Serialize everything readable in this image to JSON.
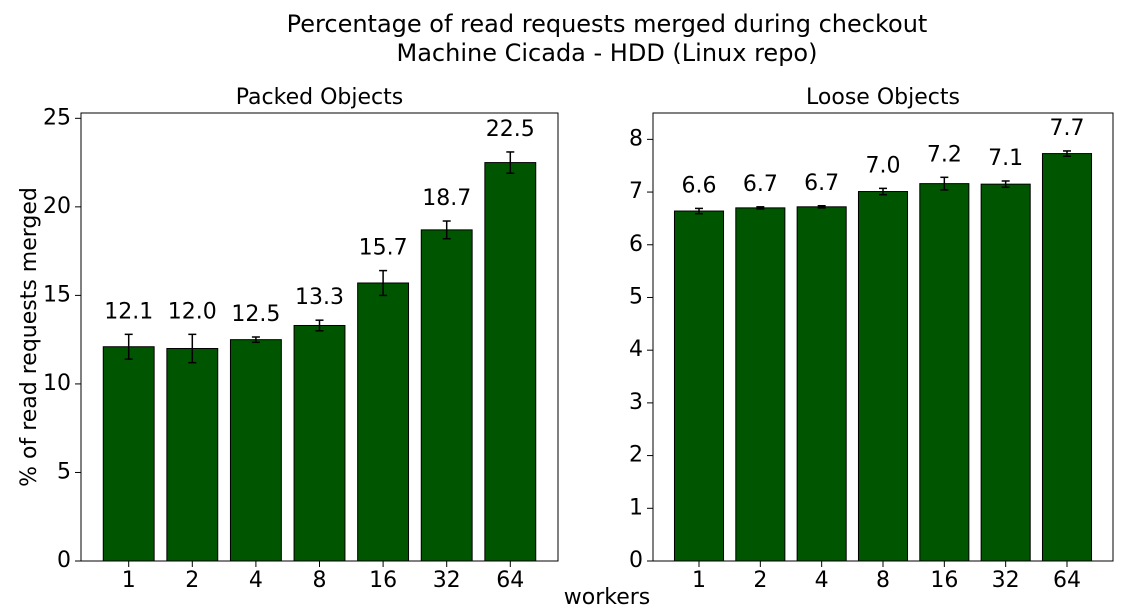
{
  "figure": {
    "title": [
      "Percentage of read requests merged during checkout",
      "Machine Cicada - HDD (Linux repo)"
    ],
    "x_label": "workers",
    "y_label": "% of read requests merged"
  },
  "chart_data": [
    {
      "type": "bar",
      "title": "Packed Objects",
      "color": "#005500",
      "categories": [
        "1",
        "2",
        "4",
        "8",
        "16",
        "32",
        "64"
      ],
      "values": [
        12.1,
        12.0,
        12.5,
        13.3,
        15.7,
        18.7,
        22.5
      ],
      "value_labels": [
        "12.1",
        "12.0",
        "12.5",
        "13.3",
        "15.7",
        "18.7",
        "22.5"
      ],
      "errors": [
        0.7,
        0.8,
        0.15,
        0.3,
        0.7,
        0.5,
        0.6
      ],
      "ylim": [
        0,
        25.3
      ],
      "yticks": [
        0,
        5,
        10,
        15,
        20,
        25
      ]
    },
    {
      "type": "bar",
      "title": "Loose Objects",
      "color": "#005500",
      "categories": [
        "1",
        "2",
        "4",
        "8",
        "16",
        "32",
        "64"
      ],
      "values": [
        6.64,
        6.7,
        6.72,
        7.01,
        7.16,
        7.15,
        7.73
      ],
      "value_labels": [
        "6.6",
        "6.7",
        "6.7",
        "7.0",
        "7.2",
        "7.1",
        "7.7"
      ],
      "errors": [
        0.05,
        0.02,
        0.02,
        0.06,
        0.12,
        0.06,
        0.05
      ],
      "ylim": [
        0,
        8.5
      ],
      "yticks": [
        0,
        1,
        2,
        3,
        4,
        5,
        6,
        7,
        8
      ]
    }
  ]
}
